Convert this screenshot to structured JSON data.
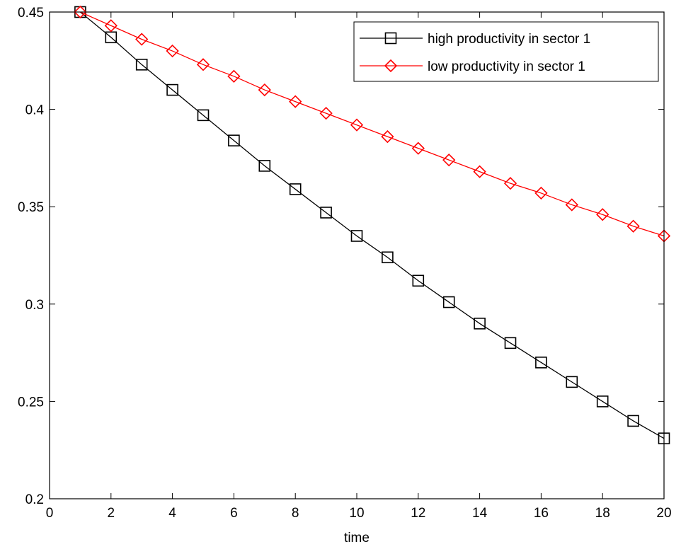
{
  "chart_data": {
    "type": "line",
    "title": "",
    "xlabel": "time",
    "ylabel": "",
    "xlim": [
      0,
      20
    ],
    "ylim": [
      0.2,
      0.45
    ],
    "xticks": [
      0,
      2,
      4,
      6,
      8,
      10,
      12,
      14,
      16,
      18,
      20
    ],
    "yticks": [
      0.2,
      0.25,
      0.3,
      0.35,
      0.4,
      0.45
    ],
    "xtick_labels": [
      "0",
      "2",
      "4",
      "6",
      "8",
      "10",
      "12",
      "14",
      "16",
      "18",
      "20"
    ],
    "ytick_labels": [
      "0.2",
      "0.25",
      "0.3",
      "0.35",
      "0.4",
      "0.45"
    ],
    "grid": false,
    "legend_position": "top-right",
    "x": [
      1,
      2,
      3,
      4,
      5,
      6,
      7,
      8,
      9,
      10,
      11,
      12,
      13,
      14,
      15,
      16,
      17,
      18,
      19,
      20
    ],
    "series": [
      {
        "name": "high productivity in sector 1",
        "color": "#000000",
        "marker": "square",
        "values": [
          0.45,
          0.437,
          0.423,
          0.41,
          0.397,
          0.384,
          0.371,
          0.359,
          0.347,
          0.335,
          0.324,
          0.312,
          0.301,
          0.29,
          0.28,
          0.27,
          0.26,
          0.25,
          0.24,
          0.231
        ]
      },
      {
        "name": "low productivity in sector 1",
        "color": "#ff0000",
        "marker": "diamond",
        "values": [
          0.45,
          0.443,
          0.436,
          0.43,
          0.423,
          0.417,
          0.41,
          0.404,
          0.398,
          0.392,
          0.386,
          0.38,
          0.374,
          0.368,
          0.362,
          0.357,
          0.351,
          0.346,
          0.34,
          0.335
        ]
      }
    ]
  }
}
